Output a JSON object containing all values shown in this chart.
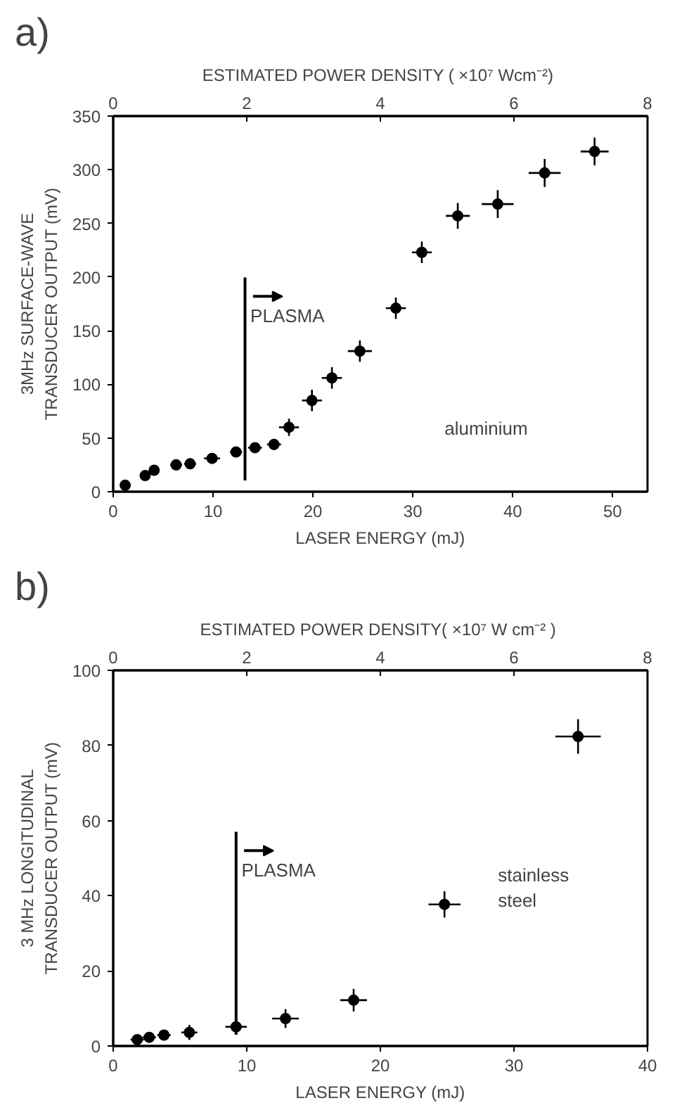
{
  "chart_data": [
    {
      "type": "scatter",
      "annotations": [
        "a)",
        "aluminium"
      ],
      "xlabel": "LASER ENERGY (mJ)",
      "ylabel": "3MHz SURFACE-WAVE\nTRANSDUCER OUTPUT (mV)",
      "x2label": "ESTIMATED  POWER DENSITY ( ×10⁷ Wcm⁻²)",
      "xlim": [
        0,
        53.5
      ],
      "ylim": [
        0,
        350
      ],
      "xticks": [
        0,
        10,
        20,
        30,
        40,
        50
      ],
      "yticks": [
        0,
        50,
        100,
        150,
        200,
        250,
        300,
        350
      ],
      "x2lim": [
        0,
        8
      ],
      "x2ticks": [
        0,
        2,
        4,
        6,
        8
      ],
      "marker": "circle",
      "grid": false,
      "ref_lines": [
        {
          "axis": "x",
          "value": 13.2,
          "label": "PLASMA"
        }
      ],
      "series": [
        {
          "color": "#000000",
          "x": [
            1.2,
            3.2,
            4.1,
            6.3,
            7.7,
            9.9,
            12.3,
            14.2,
            16.1,
            17.6,
            19.9,
            21.9,
            24.7,
            28.3,
            30.9,
            34.5,
            38.5,
            43.2,
            48.2
          ],
          "values": [
            6,
            15,
            20,
            25,
            26,
            31,
            37,
            41,
            44,
            60,
            85,
            106,
            131,
            171,
            223,
            257,
            268,
            297,
            317
          ],
          "errors": [
            null,
            null,
            null,
            5,
            5,
            4,
            4,
            4,
            5,
            8,
            10,
            10,
            10,
            10,
            10,
            12,
            13,
            13,
            13
          ],
          "xerrors": [
            null,
            null,
            null,
            0.6,
            0.6,
            0.8,
            0.6,
            0.7,
            0.7,
            1.0,
            1.0,
            1.0,
            1.2,
            1.0,
            1.0,
            1.2,
            1.6,
            1.6,
            1.4
          ]
        }
      ]
    },
    {
      "type": "scatter",
      "annotations": [
        "b)",
        "stainless\nsteel"
      ],
      "xlabel": "LASER ENERGY (mJ)",
      "ylabel": "3 MHz LONGITUDINAL\nTRANSDUCER OUTPUT (mV)",
      "x2label": "ESTIMATED  POWER DENSITY( ×10⁷ W cm⁻² )",
      "xlim": [
        0,
        40
      ],
      "ylim": [
        0,
        100
      ],
      "xticks": [
        0,
        10,
        20,
        30,
        40
      ],
      "yticks": [
        0,
        20,
        40,
        60,
        80,
        100
      ],
      "x2lim": [
        0,
        8
      ],
      "x2ticks": [
        0,
        2,
        4,
        6,
        8
      ],
      "marker": "circle",
      "grid": false,
      "ref_lines": [
        {
          "axis": "x",
          "value": 9.2,
          "label": "PLASMA"
        }
      ],
      "series": [
        {
          "color": "#000000",
          "x": [
            1.8,
            2.7,
            3.8,
            5.7,
            9.2,
            12.9,
            18.0,
            24.8,
            34.8
          ],
          "values": [
            1.7,
            2.3,
            2.9,
            3.6,
            5.1,
            7.3,
            12.2,
            37.7,
            82.4
          ],
          "errors": [
            1,
            1,
            1,
            2,
            2,
            2.5,
            3,
            3.5,
            4.6
          ],
          "xerrors": [
            0.5,
            0.5,
            0.5,
            0.6,
            0.8,
            1.0,
            1.0,
            1.2,
            1.7
          ]
        }
      ]
    }
  ]
}
